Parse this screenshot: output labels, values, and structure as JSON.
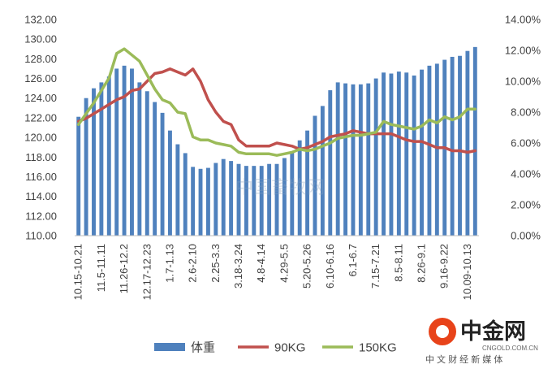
{
  "chart_data": {
    "type": "bar",
    "x_tick_labels": [
      "10.15-10.21",
      "11.5-11.11",
      "11.26-12.2",
      "12.17-12.23",
      "1.7-1.13",
      "2.6-2.10",
      "2.25-3.3",
      "3.18-3.24",
      "4.8-4.14",
      "4.29-5.5",
      "5.20-5.26",
      "6.10-6.16",
      "6.1-6.7",
      "7.15-7.21",
      "8.5-8.11",
      "8.26-9.1",
      "9.16-9.22",
      "10.09-10.13"
    ],
    "left_axis": {
      "min": 110,
      "max": 132,
      "step": 2,
      "tick_labels": [
        "110.00",
        "112.00",
        "114.00",
        "116.00",
        "118.00",
        "120.00",
        "122.00",
        "124.00",
        "126.00",
        "128.00",
        "130.00",
        "132.00"
      ]
    },
    "right_axis": {
      "min": 0,
      "max": 14,
      "step": 2,
      "tick_labels": [
        "0.00%",
        "2.00%",
        "4.00%",
        "6.00%",
        "8.00%",
        "10.00%",
        "12.00%",
        "14.00%"
      ]
    },
    "series": [
      {
        "name": "体重",
        "type": "bar",
        "axis": "left",
        "color": "#4f81bd",
        "values": [
          122.1,
          124.0,
          125.0,
          125.6,
          126.2,
          127.0,
          127.3,
          127.0,
          125.6,
          124.7,
          123.6,
          122.5,
          120.7,
          119.3,
          118.4,
          117.0,
          116.8,
          116.9,
          117.4,
          117.8,
          117.6,
          117.3,
          117.1,
          117.1,
          117.1,
          117.3,
          117.3,
          117.9,
          118.5,
          119.7,
          120.7,
          122.2,
          123.2,
          124.8,
          125.6,
          125.5,
          125.4,
          125.4,
          125.5,
          126.0,
          126.6,
          126.5,
          126.7,
          126.6,
          126.3,
          126.9,
          127.3,
          127.5,
          127.9,
          128.2,
          128.3,
          128.8,
          129.2
        ]
      },
      {
        "name": "90KG",
        "type": "line",
        "axis": "right",
        "color": "#c0504d",
        "values": [
          7.4,
          7.6,
          7.9,
          8.2,
          8.5,
          8.8,
          9.0,
          9.4,
          9.5,
          10.0,
          10.5,
          10.6,
          10.8,
          10.6,
          10.4,
          10.8,
          10.0,
          8.8,
          8.0,
          7.4,
          7.2,
          6.2,
          5.8,
          5.8,
          5.8,
          5.8,
          6.0,
          5.9,
          5.8,
          5.6,
          5.7,
          5.9,
          6.1,
          6.4,
          6.5,
          6.6,
          6.8,
          6.7,
          6.6,
          6.6,
          6.6,
          6.6,
          6.4,
          6.2,
          6.1,
          6.1,
          5.9,
          5.7,
          5.7,
          5.5,
          5.5,
          5.4,
          5.5
        ]
      },
      {
        "name": "150KG",
        "type": "line",
        "axis": "right",
        "color": "#9bbb59",
        "values": [
          7.2,
          7.9,
          8.6,
          9.4,
          10.2,
          11.8,
          12.1,
          11.7,
          11.3,
          10.4,
          9.5,
          8.8,
          8.6,
          8.0,
          7.9,
          6.4,
          6.2,
          6.2,
          6.0,
          5.9,
          5.8,
          5.4,
          5.3,
          5.3,
          5.3,
          5.3,
          5.2,
          5.3,
          5.4,
          5.6,
          5.5,
          5.6,
          5.8,
          6.0,
          6.3,
          6.4,
          6.5,
          6.5,
          6.6,
          6.7,
          7.4,
          7.2,
          7.1,
          7.0,
          6.9,
          7.1,
          7.5,
          7.3,
          7.7,
          7.5,
          7.7,
          8.2,
          8.2
        ]
      }
    ],
    "legend_position": "bottom",
    "grid": false
  },
  "watermark": {
    "center_text": "中国畜牧网",
    "logo_title": "中金网",
    "logo_url": "CNGOLD.COM.CN",
    "logo_slogan": "中 文 财 经 新 媒 体"
  }
}
